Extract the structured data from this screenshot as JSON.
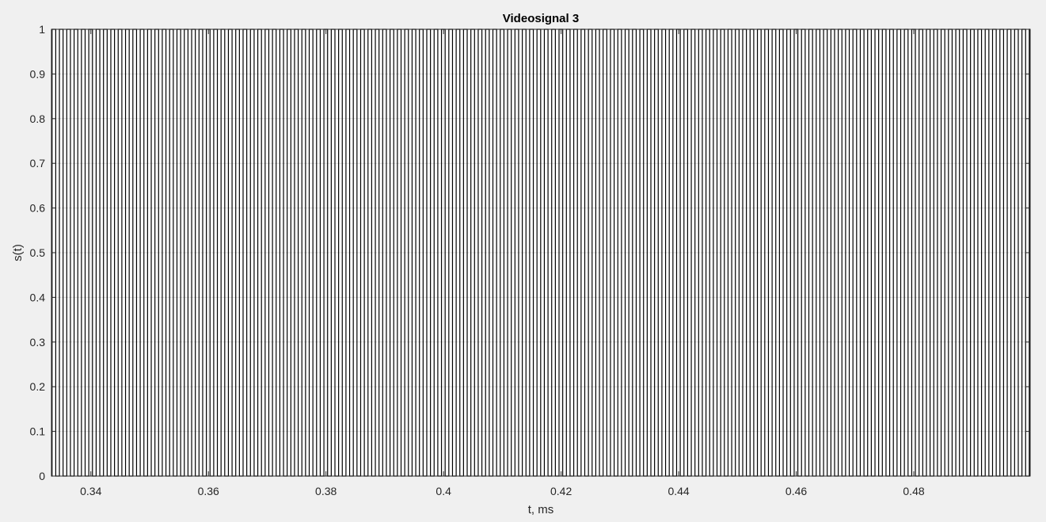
{
  "chart_data": {
    "type": "line",
    "title": "Videosignal 3",
    "xlabel": "t, ms",
    "ylabel": "s(t)",
    "xlim": [
      0.3333,
      0.4998
    ],
    "ylim": [
      0,
      1
    ],
    "grid": true,
    "x_ticks": [
      0.34,
      0.36,
      0.38,
      0.4,
      0.42,
      0.44,
      0.46,
      0.48
    ],
    "x_tick_labels": [
      "0.34",
      "0.36",
      "0.38",
      "0.4",
      "0.42",
      "0.44",
      "0.46",
      "0.48"
    ],
    "y_ticks": [
      0,
      0.1,
      0.2,
      0.3,
      0.4,
      0.5,
      0.6,
      0.7,
      0.8,
      0.9,
      1
    ],
    "y_tick_labels": [
      "0",
      "0.1",
      "0.2",
      "0.3",
      "0.4",
      "0.5",
      "0.6",
      "0.7",
      "0.8",
      "0.9",
      "1"
    ],
    "series": [
      {
        "color": "#000000",
        "style": "square-wave",
        "levels": [
          0,
          1
        ],
        "period_ms": 0.00125,
        "first_rise_ms": 0.3334,
        "duty": 0.5
      }
    ],
    "colors": {
      "figure_bg": "#f0f0f0",
      "axes_bg": "#ffffff",
      "grid": "#dcdcdc",
      "axis": "#262626",
      "line": "#000000"
    }
  }
}
